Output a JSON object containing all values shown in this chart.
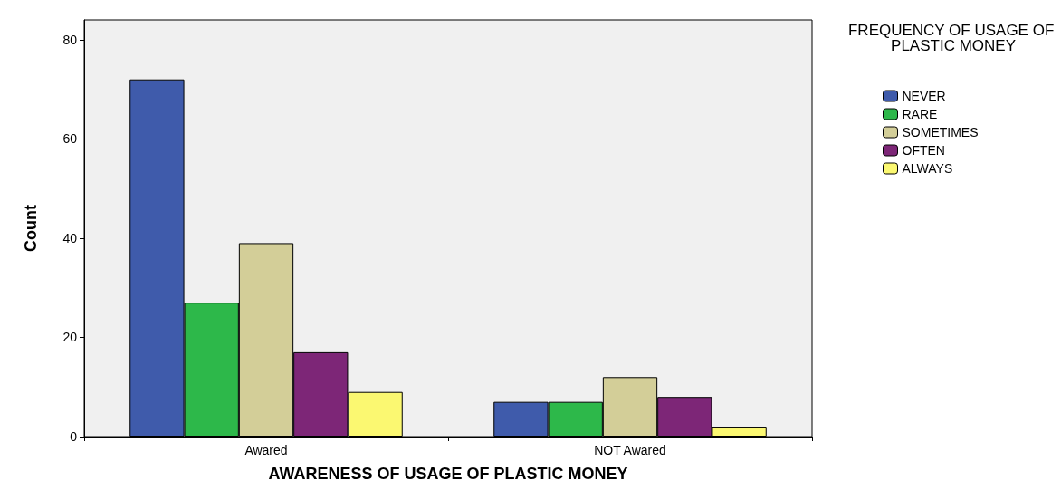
{
  "chart_data": {
    "type": "bar",
    "xlabel": "AWARENESS OF USAGE OF PLASTIC MONEY",
    "ylabel": "Count",
    "legend_title": "FREQUENCY OF USAGE OF PLASTIC MONEY",
    "categories": [
      "Awared",
      "NOT Awared"
    ],
    "series": [
      {
        "name": "NEVER",
        "color": "#3f5bab",
        "values": [
          72,
          7
        ]
      },
      {
        "name": "RARE",
        "color": "#2db84a",
        "values": [
          27,
          7
        ]
      },
      {
        "name": "SOMETIMES",
        "color": "#d3ce98",
        "values": [
          39,
          12
        ]
      },
      {
        "name": "OFTEN",
        "color": "#7d2677",
        "values": [
          17,
          8
        ]
      },
      {
        "name": "ALWAYS",
        "color": "#fbf871",
        "values": [
          9,
          2
        ]
      }
    ],
    "ylim": [
      0,
      84
    ],
    "yticks": [
      0,
      20,
      40,
      60,
      80
    ],
    "grid": false,
    "legend": "top right"
  }
}
